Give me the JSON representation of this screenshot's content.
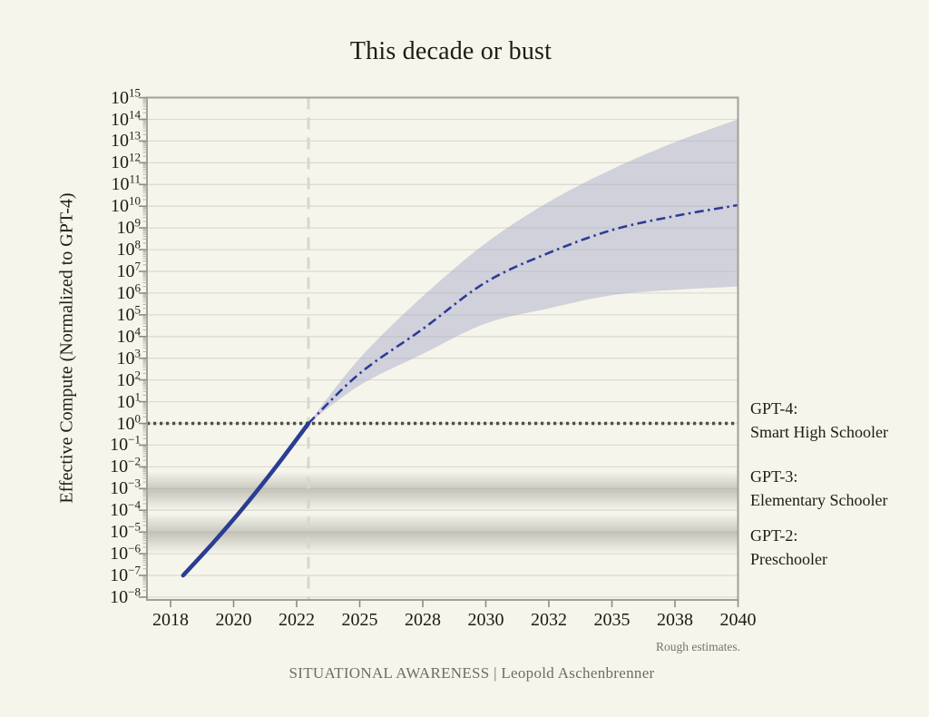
{
  "page": {
    "background": "#f6f5ec"
  },
  "chart_data": {
    "type": "line",
    "title": "This decade or bust",
    "ylabel": "Effective Compute (Normalized to GPT-4)",
    "note": "Rough estimates.",
    "x_tick_years": [
      2018,
      2020,
      2022,
      2025,
      2028,
      2030,
      2032,
      2035,
      2038,
      2040
    ],
    "y_tick_exponents": [
      15,
      14,
      13,
      12,
      11,
      10,
      9,
      8,
      7,
      6,
      5,
      4,
      3,
      2,
      1,
      0,
      -1,
      -2,
      -3,
      -4,
      -5,
      -6,
      -7,
      -8
    ],
    "y_scale": "log10, values shown as 10^exponent",
    "x_range_years": [
      2018,
      2040
    ],
    "y_range_exponents": [
      -8,
      15
    ],
    "grid": "horizontal decade gridlines",
    "legend": "none",
    "colors": {
      "line_blue": "#2a3d92",
      "projection_blue": "#2e3b97",
      "uncertainty_band": "#a9adca",
      "dotted_reference": "#4e4e4a",
      "dashed_vline": "#d8d7cc",
      "reference_band_gray": "#a8a8a0"
    },
    "series": [
      {
        "name": "historical-effective-compute",
        "style": "solid",
        "points_year_exp": [
          [
            2018.4,
            -7.0
          ],
          [
            2019.38,
            -5.45
          ],
          [
            2020.36,
            -3.79
          ],
          [
            2021.34,
            -2.0
          ],
          [
            2022.56,
            0
          ]
        ]
      },
      {
        "name": "projected-effective-compute",
        "style": "dash-dot",
        "points_year_exp": [
          [
            2022.56,
            0
          ],
          [
            2025,
            2.3
          ],
          [
            2028,
            4.35
          ],
          [
            2030,
            6.5
          ],
          [
            2032,
            7.85
          ],
          [
            2035,
            8.9
          ],
          [
            2038,
            9.55
          ],
          [
            2040,
            10.05
          ]
        ]
      }
    ],
    "uncertainty_band": {
      "upper_year_exp": [
        [
          2022.56,
          0
        ],
        [
          2025,
          3.0
        ],
        [
          2028,
          5.85
        ],
        [
          2030,
          8.3
        ],
        [
          2032,
          10.2
        ],
        [
          2035,
          11.7
        ],
        [
          2038,
          12.95
        ],
        [
          2040,
          14.0
        ]
      ],
      "lower_year_exp": [
        [
          2022.56,
          0
        ],
        [
          2025,
          1.75
        ],
        [
          2028,
          3.2
        ],
        [
          2030,
          4.6
        ],
        [
          2032,
          5.3
        ],
        [
          2035,
          5.9
        ],
        [
          2038,
          6.15
        ],
        [
          2040,
          6.3
        ]
      ]
    },
    "reference_lines": {
      "gpt4_dotted_hline_exponent": 0,
      "vline_year": 2022.56
    },
    "reference_bands": [
      {
        "name": "gpt3-level",
        "exp_top": -2.2,
        "exp_bottom": -4.0
      },
      {
        "name": "gpt2-level",
        "exp_top": -4.15,
        "exp_bottom": -6.0
      }
    ],
    "annotations": [
      {
        "line1": "GPT-4:",
        "line2": "Smart High Schooler"
      },
      {
        "line1": "GPT-3:",
        "line2": "Elementary Schooler"
      },
      {
        "line1": "GPT-2:",
        "line2": "Preschooler"
      }
    ]
  },
  "footer": {
    "brand": "SITUATIONAL AWARENESS | Leopold Aschenbrenner"
  }
}
